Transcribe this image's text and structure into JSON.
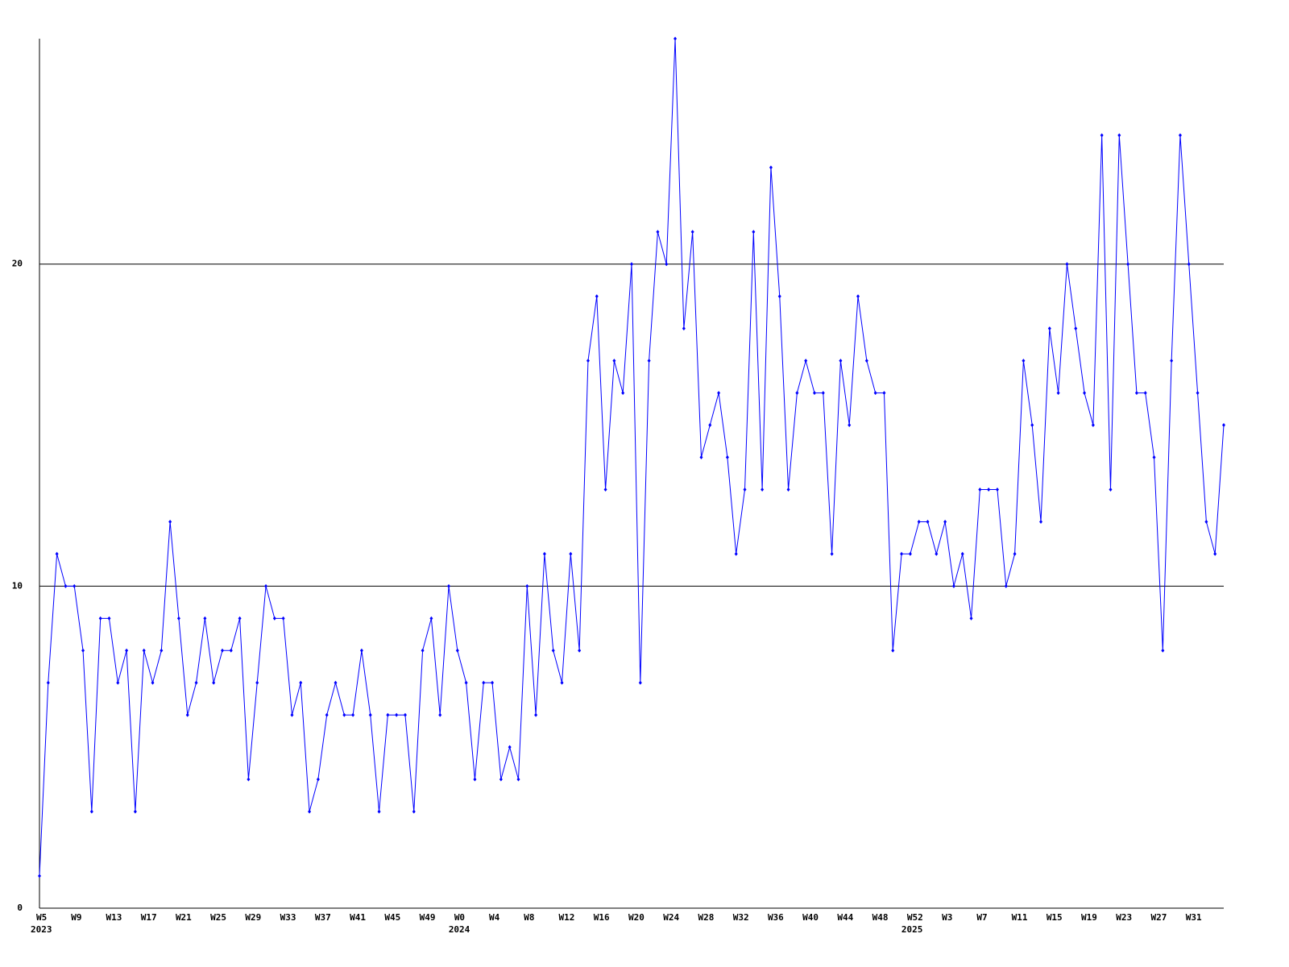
{
  "chart_data": {
    "type": "line",
    "categories": [
      "W5",
      null,
      null,
      null,
      "W9",
      null,
      null,
      null,
      "W13",
      null,
      null,
      null,
      "W17",
      null,
      null,
      null,
      "W21",
      null,
      null,
      null,
      "W25",
      null,
      null,
      null,
      "W29",
      null,
      null,
      null,
      "W33",
      null,
      null,
      null,
      "W37",
      null,
      null,
      null,
      "W41",
      null,
      null,
      null,
      "W45",
      null,
      null,
      null,
      "W49",
      null,
      null,
      null,
      "W0",
      null,
      null,
      null,
      "W4",
      null,
      null,
      null,
      "W8",
      null,
      null,
      null,
      "W12",
      null,
      null,
      null,
      "W16",
      null,
      null,
      null,
      "W20",
      null,
      null,
      null,
      "W24",
      null,
      null,
      null,
      "W28",
      null,
      null,
      null,
      "W32",
      null,
      null,
      null,
      "W36",
      null,
      null,
      null,
      "W40",
      null,
      null,
      null,
      "W44",
      null,
      null,
      null,
      "W48",
      null,
      null,
      null,
      "W52",
      null,
      null,
      null,
      "W3",
      null,
      null,
      null,
      "W7",
      null,
      null,
      null,
      "W11",
      null,
      null,
      null,
      "W15",
      null,
      null,
      null,
      "W19",
      null,
      null,
      null,
      "W23",
      null,
      null,
      null,
      "W27",
      null,
      null,
      null,
      "W31",
      null,
      null,
      null,
      null
    ],
    "year_labels": [
      "2023",
      null,
      null,
      null,
      null,
      null,
      null,
      null,
      null,
      null,
      null,
      null,
      null,
      null,
      null,
      null,
      null,
      null,
      null,
      null,
      null,
      null,
      null,
      null,
      null,
      null,
      null,
      null,
      null,
      null,
      null,
      null,
      null,
      null,
      null,
      null,
      null,
      null,
      null,
      null,
      null,
      null,
      null,
      null,
      null,
      null,
      null,
      null,
      "2024",
      null,
      null,
      null,
      null,
      null,
      null,
      null,
      null,
      null,
      null,
      null,
      null,
      null,
      null,
      null,
      null,
      null,
      null,
      null,
      null,
      null,
      null,
      null,
      null,
      null,
      null,
      null,
      null,
      null,
      null,
      null,
      null,
      null,
      null,
      null,
      null,
      null,
      null,
      null,
      null,
      null,
      null,
      null,
      null,
      null,
      null,
      null,
      null,
      null,
      null,
      null,
      "2025",
      null,
      null,
      null,
      null,
      null,
      null,
      null,
      null,
      null,
      null,
      null,
      null,
      null,
      null,
      null,
      null,
      null,
      null,
      null,
      null,
      null,
      null,
      null,
      null,
      null,
      null,
      null,
      null,
      null,
      null,
      null,
      null,
      null,
      null,
      null,
      null
    ],
    "series": [
      {
        "name": null,
        "color": "#0000ff",
        "values": [
          1,
          7,
          11,
          10,
          10,
          8,
          3,
          9,
          9,
          7,
          8,
          3,
          8,
          7,
          8,
          12,
          9,
          6,
          7,
          9,
          7,
          8,
          8,
          9,
          4,
          7,
          10,
          9,
          9,
          6,
          7,
          3,
          4,
          6,
          7,
          6,
          6,
          8,
          6,
          3,
          6,
          6,
          6,
          3,
          8,
          9,
          6,
          10,
          8,
          7,
          4,
          7,
          7,
          4,
          5,
          4,
          10,
          6,
          11,
          8,
          7,
          11,
          8,
          17,
          19,
          13,
          17,
          16,
          20,
          7,
          17,
          21,
          20,
          27,
          18,
          21,
          14,
          15,
          16,
          14,
          11,
          13,
          21,
          13,
          23,
          19,
          13,
          16,
          17,
          16,
          16,
          11,
          17,
          15,
          19,
          17,
          16,
          16,
          8,
          11,
          11,
          12,
          12,
          11,
          12,
          10,
          11,
          9,
          13,
          13,
          13,
          10,
          11,
          17,
          15,
          12,
          18,
          16,
          20,
          18,
          16,
          15,
          24,
          13,
          24,
          20,
          16,
          16,
          14,
          8,
          17,
          24,
          20,
          16,
          12,
          11,
          15
        ]
      }
    ],
    "ylim": [
      0,
      27
    ],
    "yticks": [
      0,
      10,
      20
    ],
    "grid": true
  }
}
